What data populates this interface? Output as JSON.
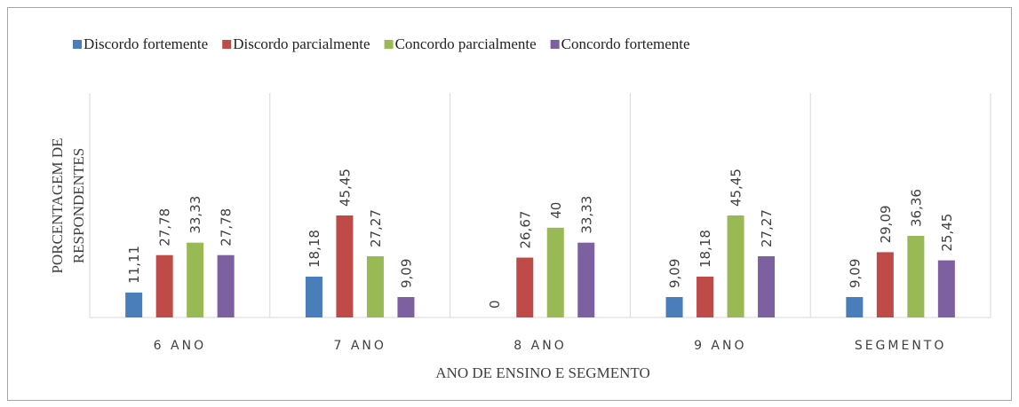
{
  "chart_data": {
    "type": "bar",
    "ylabel": [
      "PORCENTAGEM DE",
      "RESPONDENTES"
    ],
    "xlabel": "ANO DE ENSINO E SEGMENTO",
    "categories": [
      "6 ANO",
      "7 ANO",
      "8 ANO",
      "9 ANO",
      "SEGMENTO"
    ],
    "ylim": [
      0,
      100
    ],
    "series": [
      {
        "name": "Discordo fortemente",
        "color": "#4a7ebb",
        "values": [
          11.11,
          18.18,
          0,
          9.09,
          9.09
        ],
        "value_labels": [
          "11,11",
          "18,18",
          "0",
          "9,09",
          "9,09"
        ]
      },
      {
        "name": "Discordo parcialmente",
        "color": "#be4b48",
        "values": [
          27.78,
          45.45,
          26.67,
          18.18,
          29.09
        ],
        "value_labels": [
          "27,78",
          "45,45",
          "26,67",
          "18,18",
          "29,09"
        ]
      },
      {
        "name": "Concordo parcialmente",
        "color": "#98b954",
        "values": [
          33.33,
          27.27,
          40,
          45.45,
          36.36
        ],
        "value_labels": [
          "33,33",
          "27,27",
          "40",
          "45,45",
          "36,36"
        ]
      },
      {
        "name": "Concordo fortemente",
        "color": "#7d60a0",
        "values": [
          27.78,
          9.09,
          33.33,
          27.27,
          25.45
        ],
        "value_labels": [
          "27,78",
          "9,09",
          "33,33",
          "27,27",
          "25,45"
        ]
      }
    ]
  }
}
